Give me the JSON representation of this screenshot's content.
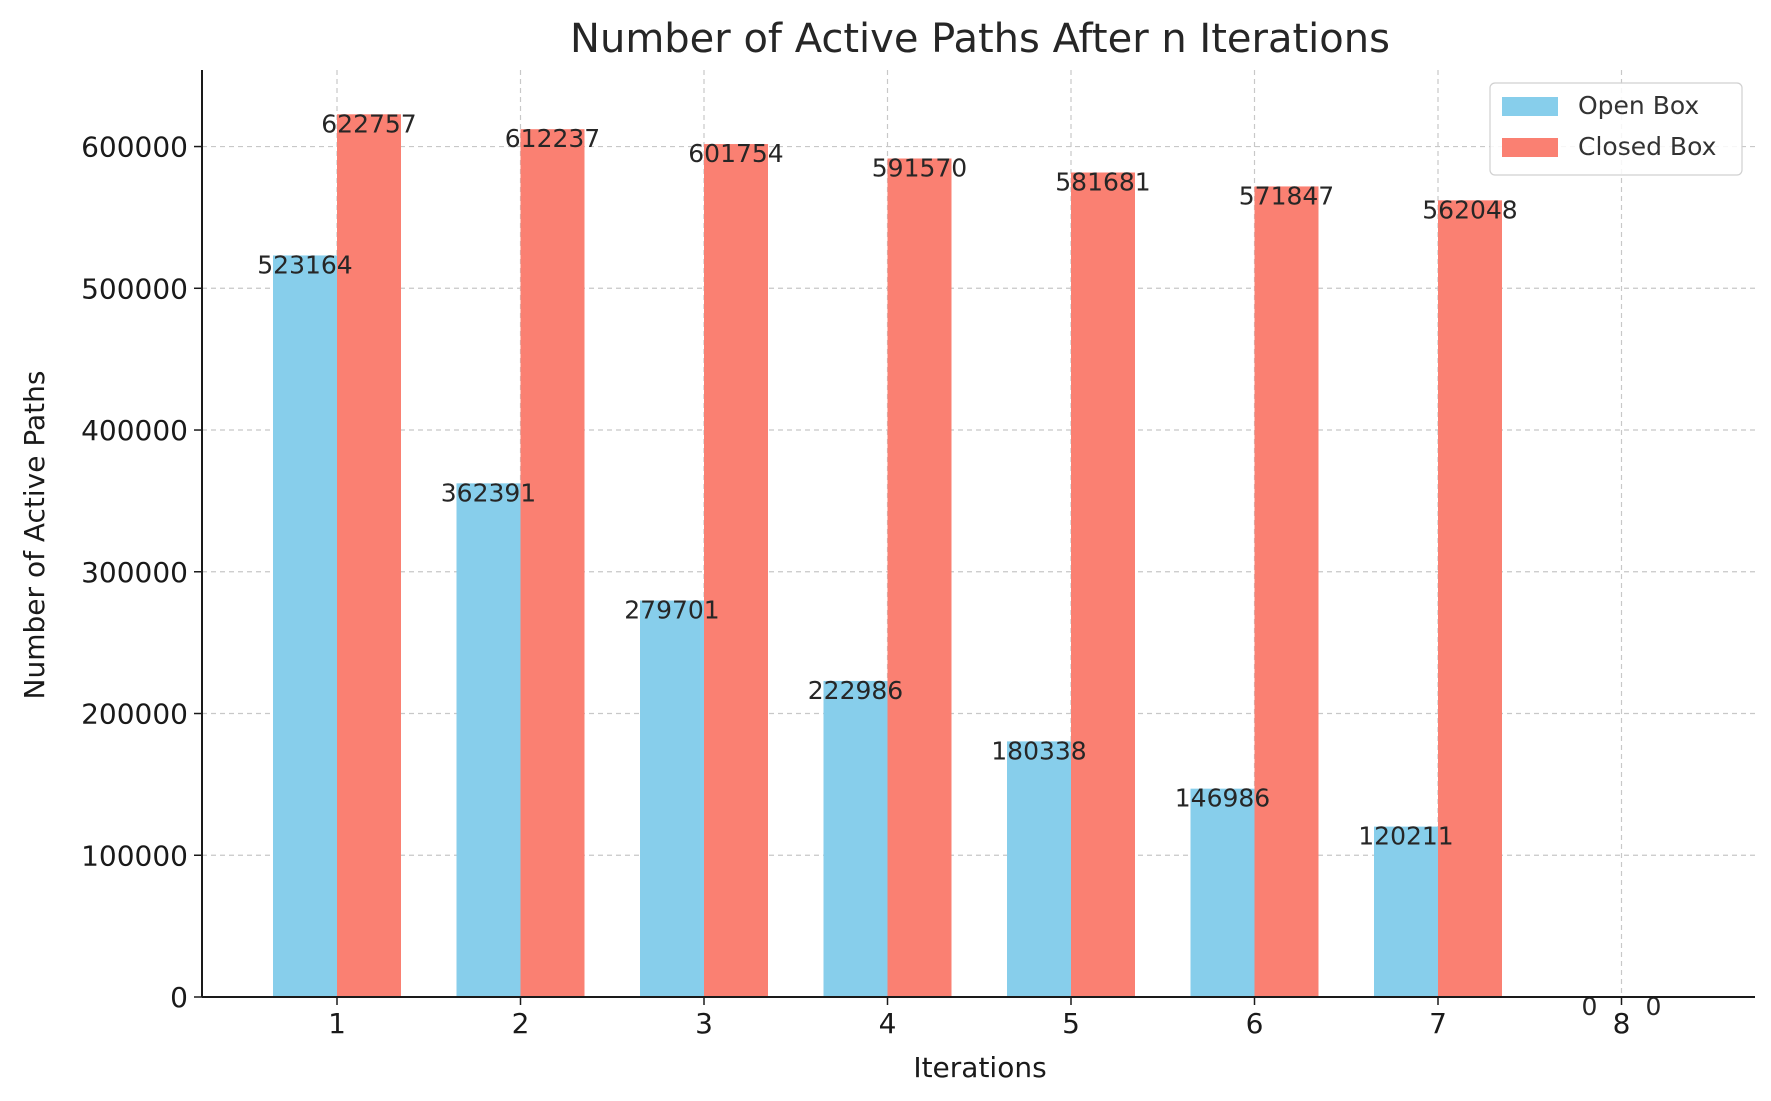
{
  "chart_data": {
    "type": "bar",
    "title": "Number of Active Paths After n Iterations",
    "xlabel": "Iterations",
    "ylabel": "Number of Active Paths",
    "categories": [
      "1",
      "2",
      "3",
      "4",
      "5",
      "6",
      "7",
      "8"
    ],
    "series": [
      {
        "name": "Open Box",
        "color": "#87CEEB",
        "values": [
          523164,
          362391,
          279701,
          222986,
          180338,
          146986,
          120211,
          0
        ]
      },
      {
        "name": "Closed Box",
        "color": "#FA8072",
        "values": [
          622757,
          612237,
          601754,
          591570,
          581681,
          571847,
          562048,
          0
        ]
      }
    ],
    "ylim": [
      0,
      654000
    ],
    "yticks": [
      0,
      100000,
      200000,
      300000,
      400000,
      500000,
      600000
    ],
    "grid": true,
    "legend_position": "top-right"
  }
}
